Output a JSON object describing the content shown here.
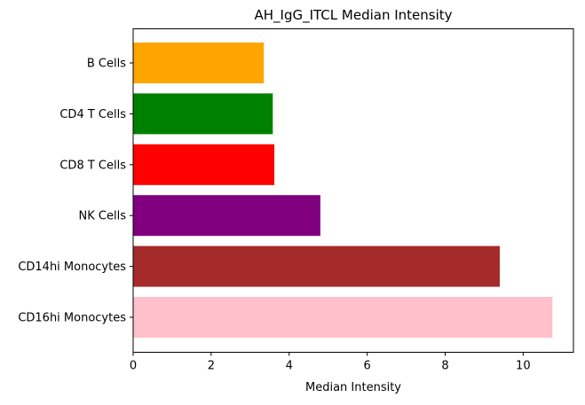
{
  "chart_data": {
    "type": "bar",
    "orientation": "horizontal",
    "title": "AH_IgG_ITCL Median Intensity",
    "xlabel": "Median Intensity",
    "ylabel": "",
    "categories": [
      "B Cells",
      "CD4 T Cells",
      "CD8 T Cells",
      "NK Cells",
      "CD14hi Monocytes",
      "CD16hi Monocytes"
    ],
    "values": [
      3.35,
      3.58,
      3.62,
      4.8,
      9.4,
      10.75
    ],
    "colors": [
      "#FFA500",
      "#008000",
      "#FF0000",
      "#800080",
      "#A52A2A",
      "#FFC0CB"
    ],
    "xlim": [
      0,
      11.29
    ],
    "xticks": [
      0,
      2,
      4,
      6,
      8,
      10
    ],
    "grid": false,
    "legend": "none"
  }
}
